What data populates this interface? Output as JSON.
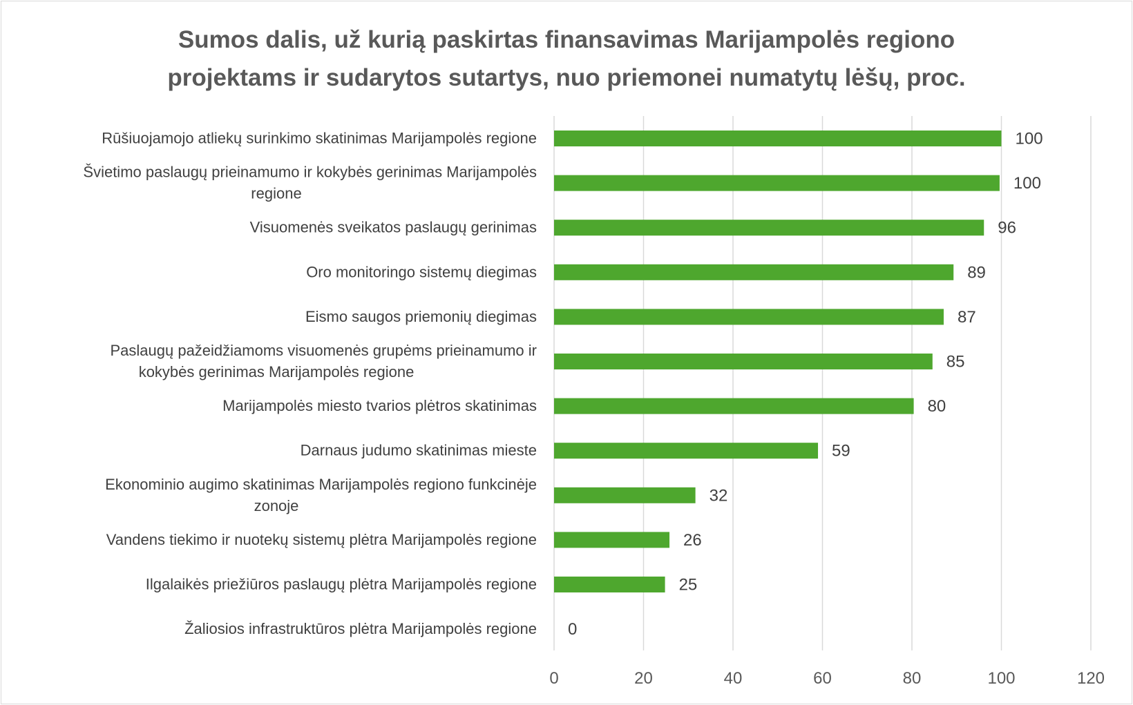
{
  "chart_data": {
    "type": "bar",
    "orientation": "horizontal",
    "title_lines": [
      "Sumos dalis, už kurią paskirtas finansavimas Marijampolės regiono",
      "projektams ir sudarytos sutartys, nuo priemonei numatytų lėšų, proc."
    ],
    "categories": [
      [
        "Rūšiuojamojo atliekų surinkimo skatinimas Marijampolės regione"
      ],
      [
        "Švietimo paslaugų prieinamumo ir kokybės gerinimas Marijampolės",
        "regione"
      ],
      [
        "Visuomenės sveikatos paslaugų gerinimas"
      ],
      [
        "Oro monitoringo sistemų diegimas"
      ],
      [
        "Eismo saugos priemonių diegimas"
      ],
      [
        "Paslaugų pažeidžiamoms visuomenės grupėms prieinamumo ir",
        "kokybės gerinimas Marijampolės regione"
      ],
      [
        "Marijampolės miesto tvarios plėtros skatinimas"
      ],
      [
        "Darnaus judumo skatinimas mieste"
      ],
      [
        "Ekonominio augimo skatinimas Marijampolės regiono funkcinėje",
        "zonoje"
      ],
      [
        "Vandens tiekimo ir nuotekų sistemų plėtra Marijampolės regione"
      ],
      [
        "Ilgalaikės priežiūros paslaugų plėtra Marijampolės regione"
      ],
      [
        "Žaliosios infrastruktūros plėtra Marijampolės regione"
      ]
    ],
    "values": [
      100,
      99.6,
      96.1,
      89.3,
      87.1,
      84.6,
      80.4,
      59,
      31.6,
      25.8,
      24.8,
      0
    ],
    "data_labels": [
      "100",
      "100",
      "96",
      "89",
      "87",
      "85",
      "80",
      "59",
      "32",
      "26",
      "25",
      "0"
    ],
    "xlim": [
      0,
      120
    ],
    "xticks": [
      "0",
      "20",
      "40",
      "60",
      "80",
      "100",
      "120"
    ],
    "bar_color": "#4ea72e",
    "grid": true
  }
}
